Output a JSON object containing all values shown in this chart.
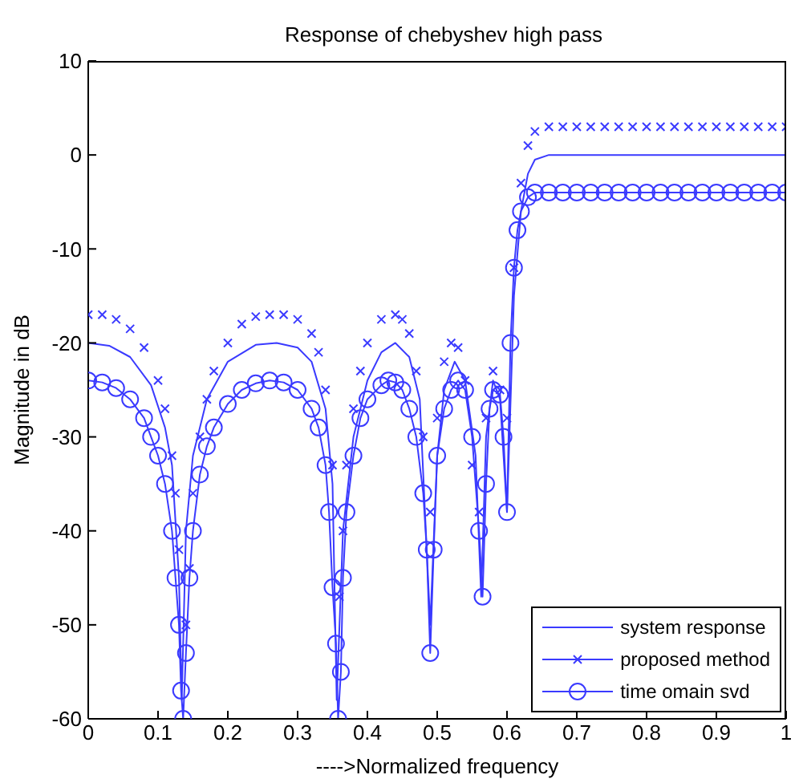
{
  "chart_data": {
    "type": "line",
    "title": "Response of chebyshev high pass",
    "xlabel": "---->Normalized frequency",
    "ylabel": "Magnitude in dB",
    "xlim": [
      0,
      1
    ],
    "ylim": [
      -60,
      10
    ],
    "xticks": [
      0,
      0.1,
      0.2,
      0.3,
      0.4,
      0.5,
      0.6,
      0.7,
      0.8,
      0.9,
      1
    ],
    "yticks": [
      -60,
      -50,
      -40,
      -30,
      -20,
      -10,
      0,
      10
    ],
    "grid": false,
    "legend": "bottom right",
    "series": [
      {
        "name": "system response",
        "color": "#3a3aff",
        "marker": "none",
        "x": [
          0,
          0.03,
          0.06,
          0.09,
          0.11,
          0.12,
          0.13,
          0.134,
          0.14,
          0.15,
          0.17,
          0.2,
          0.24,
          0.27,
          0.3,
          0.32,
          0.34,
          0.35,
          0.356,
          0.365,
          0.38,
          0.4,
          0.42,
          0.44,
          0.46,
          0.475,
          0.49,
          0.5,
          0.51,
          0.525,
          0.54,
          0.555,
          0.563,
          0.57,
          0.58,
          0.59,
          0.6,
          0.61,
          0.62,
          0.63,
          0.64,
          0.66,
          1
        ],
        "values": [
          -20,
          -20.3,
          -21.5,
          -24.5,
          -29,
          -33,
          -45,
          -58,
          -40,
          -32,
          -26,
          -22,
          -20.2,
          -20,
          -20.5,
          -22,
          -27,
          -35,
          -58,
          -40,
          -30,
          -24,
          -21,
          -20,
          -21.5,
          -26,
          -50,
          -32,
          -25,
          -22,
          -24,
          -32,
          -47,
          -30,
          -24,
          -26,
          -38,
          -15,
          -6,
          -2,
          -0.5,
          0,
          0
        ]
      },
      {
        "name": "proposed method",
        "type": "scatter",
        "color": "#3a3aff",
        "marker": "cross",
        "x": [
          0,
          0.02,
          0.04,
          0.06,
          0.08,
          0.1,
          0.11,
          0.12,
          0.125,
          0.13,
          0.14,
          0.145,
          0.15,
          0.16,
          0.17,
          0.18,
          0.2,
          0.22,
          0.24,
          0.26,
          0.28,
          0.3,
          0.32,
          0.33,
          0.34,
          0.35,
          0.36,
          0.365,
          0.37,
          0.38,
          0.39,
          0.4,
          0.42,
          0.44,
          0.45,
          0.46,
          0.47,
          0.48,
          0.49,
          0.5,
          0.51,
          0.52,
          0.53,
          0.54,
          0.55,
          0.56,
          0.57,
          0.58,
          0.59,
          0.6,
          0.61,
          0.62,
          0.63,
          0.64,
          0.66,
          0.68,
          0.7,
          0.72,
          0.74,
          0.76,
          0.78,
          0.8,
          0.82,
          0.84,
          0.86,
          0.88,
          0.9,
          0.92,
          0.94,
          0.96,
          0.98,
          1
        ],
        "values": [
          -17,
          -17,
          -17.5,
          -18.5,
          -20.5,
          -24,
          -27,
          -32,
          -36,
          -42,
          -50,
          -44,
          -36,
          -30,
          -26,
          -23,
          -20,
          -18,
          -17.2,
          -17,
          -17,
          -17.5,
          -19,
          -21,
          -25,
          -33,
          -47,
          -40,
          -33,
          -27,
          -23,
          -20,
          -17.5,
          -17,
          -17.5,
          -19,
          -23,
          -30,
          -38,
          -28,
          -22,
          -20,
          -20.5,
          -24,
          -33,
          -38,
          -28,
          -23,
          -25,
          -28,
          -12,
          -3,
          1,
          2.5,
          3,
          3,
          3,
          3,
          3,
          3,
          3,
          3,
          3,
          3,
          3,
          3,
          3,
          3,
          3,
          3,
          3,
          3
        ]
      },
      {
        "name": "time omain svd",
        "color": "#3a3aff",
        "marker": "circle",
        "x": [
          0,
          0.02,
          0.04,
          0.06,
          0.08,
          0.09,
          0.1,
          0.11,
          0.12,
          0.125,
          0.13,
          0.133,
          0.136,
          0.14,
          0.145,
          0.15,
          0.16,
          0.17,
          0.18,
          0.2,
          0.22,
          0.24,
          0.26,
          0.28,
          0.3,
          0.32,
          0.33,
          0.34,
          0.345,
          0.35,
          0.355,
          0.358,
          0.362,
          0.365,
          0.37,
          0.38,
          0.39,
          0.4,
          0.42,
          0.43,
          0.44,
          0.45,
          0.46,
          0.47,
          0.48,
          0.485,
          0.49,
          0.495,
          0.5,
          0.51,
          0.52,
          0.53,
          0.54,
          0.55,
          0.56,
          0.565,
          0.57,
          0.575,
          0.58,
          0.59,
          0.595,
          0.6,
          0.605,
          0.61,
          0.615,
          0.62,
          0.63,
          0.64,
          0.66,
          0.68,
          0.7,
          0.72,
          0.74,
          0.76,
          0.78,
          0.8,
          0.82,
          0.84,
          0.86,
          0.88,
          0.9,
          0.92,
          0.94,
          0.96,
          0.98,
          1
        ],
        "values": [
          -24,
          -24.2,
          -24.8,
          -26,
          -28,
          -30,
          -32,
          -35,
          -40,
          -45,
          -50,
          -57,
          -60,
          -53,
          -45,
          -40,
          -34,
          -31,
          -29,
          -26.5,
          -25,
          -24.3,
          -24,
          -24.2,
          -25,
          -27,
          -29,
          -33,
          -38,
          -46,
          -52,
          -60,
          -55,
          -45,
          -38,
          -32,
          -28,
          -26,
          -24.5,
          -24,
          -24.2,
          -25,
          -27,
          -30,
          -36,
          -42,
          -53,
          -42,
          -32,
          -27,
          -25,
          -24,
          -25,
          -30,
          -40,
          -47,
          -35,
          -27,
          -25,
          -25.5,
          -30,
          -38,
          -20,
          -12,
          -8,
          -6,
          -4.5,
          -4,
          -4,
          -4,
          -4,
          -4,
          -4,
          -4,
          -4,
          -4,
          -4,
          -4,
          -4,
          -4,
          -4,
          -4,
          -4,
          -4,
          -4,
          -4
        ]
      }
    ]
  }
}
